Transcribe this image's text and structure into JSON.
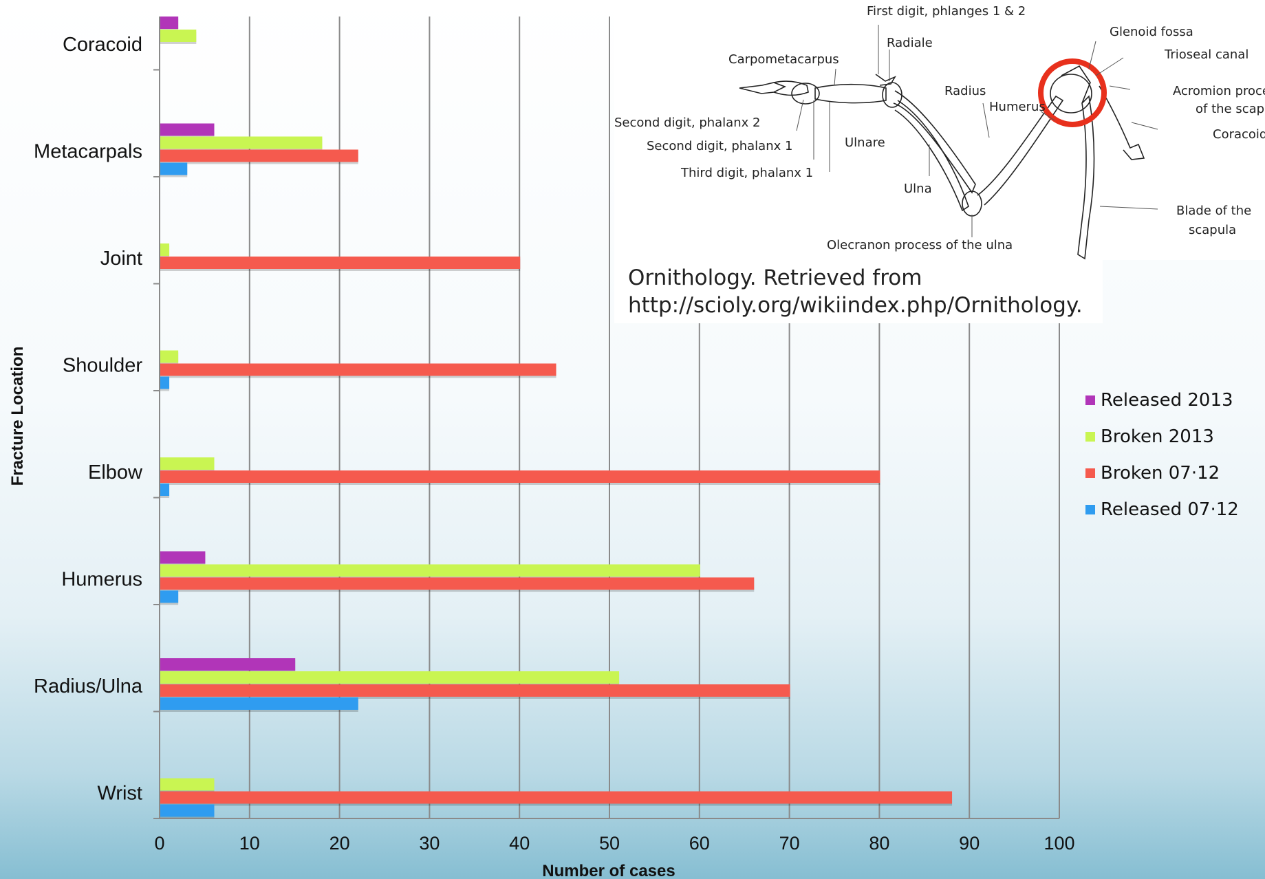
{
  "chart_data": {
    "type": "bar",
    "orientation": "horizontal",
    "xlabel": "Number of cases",
    "ylabel": "Fracture Location",
    "xlim": [
      0,
      100
    ],
    "xticks": [
      0,
      10,
      20,
      30,
      40,
      50,
      60,
      70,
      80,
      90,
      100
    ],
    "grid": "vertical",
    "legend_position": "right",
    "categories": [
      "Coracoid",
      "Metacarpals",
      "Joint",
      "Shoulder",
      "Elbow",
      "Humerus",
      "Radius/Ulna",
      "Wrist"
    ],
    "series": [
      {
        "name": "Released 2013",
        "color": "#b135b8",
        "values": [
          2,
          6,
          0,
          0,
          0,
          5,
          15,
          0
        ]
      },
      {
        "name": "Broken 2013",
        "color": "#c9f552",
        "values": [
          4,
          18,
          1,
          2,
          6,
          60,
          51,
          6
        ]
      },
      {
        "name": "Broken 07-12",
        "color": "#f55a4e",
        "values": [
          0,
          22,
          40,
          44,
          80,
          66,
          70,
          88
        ]
      },
      {
        "name": "Released 07-12",
        "color": "#2f9cf0",
        "values": [
          0,
          3,
          0,
          1,
          1,
          2,
          22,
          6
        ]
      }
    ]
  },
  "legend_labels": [
    "Released 2013",
    "Broken 2013",
    "Broken 07·12",
    "Released 07·12"
  ],
  "inset": {
    "labels": {
      "first_digit": "First digit, phlanges 1 & 2",
      "radiale": "Radiale",
      "carpometacarpus": "Carpometacarpus",
      "glenoid_fossa": "Glenoid fossa",
      "trioseal_canal": "Trioseal canal",
      "acromion": "Acromion proce",
      "scapula_part": "of the scapu",
      "radius": "Radius",
      "humerus": "Humerus",
      "coracoid": "Coracoid",
      "second_digit_2": "Second digit, phalanx 2",
      "second_digit_1": "Second digit, phalanx 1",
      "ulnare": "Ulnare",
      "third_digit": "Third digit, phalanx 1",
      "ulna": "Ulna",
      "blade": "Blade of the",
      "blade_2": "scapula",
      "olecranon": "Olecranon process of the ulna"
    },
    "highlight_color": "#e8301c"
  },
  "caption": {
    "line1": "Ornithology. Retrieved from",
    "line2": "http://scioly.org/wikiindex.php/Ornithology."
  }
}
